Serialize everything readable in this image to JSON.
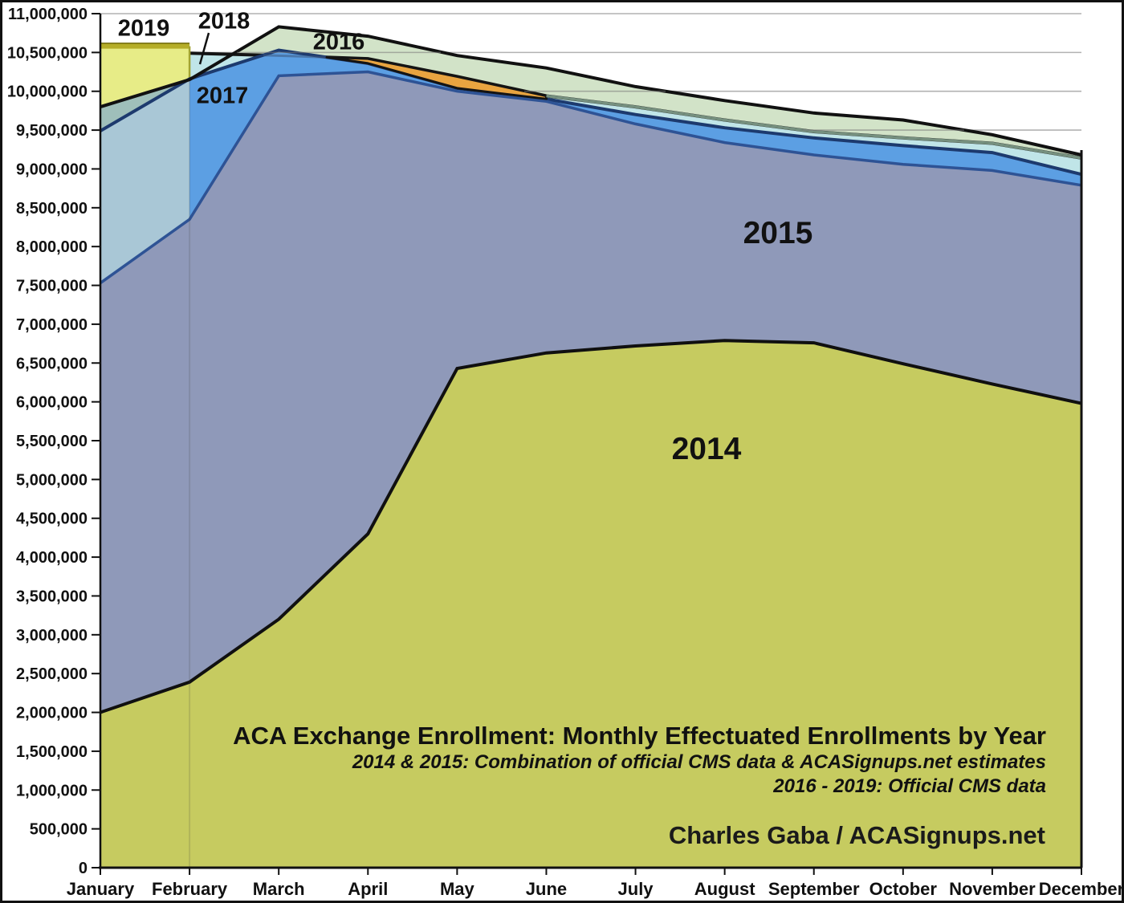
{
  "title": {
    "main": "ACA Exchange Enrollment: Monthly Effectuated Enrollments by Year",
    "sub1": "2014 & 2015: Combination of official CMS data & ACASignups.net estimates",
    "sub2": "2016 - 2019: Official CMS data"
  },
  "credit": "Charles Gaba / ACASignups.net",
  "chart_data": {
    "type": "area",
    "overlapping": true,
    "grid": "horizontal",
    "x_categories": [
      "January",
      "February",
      "March",
      "April",
      "May",
      "June",
      "July",
      "August",
      "September",
      "October",
      "November",
      "December"
    ],
    "y_axis": {
      "min": 0,
      "max": 11000000,
      "step": 500000,
      "tick_labels": [
        "0",
        "500,000",
        "1,000,000",
        "1,500,000",
        "2,000,000",
        "2,500,000",
        "3,000,000",
        "3,500,000",
        "4,000,000",
        "4,500,000",
        "5,000,000",
        "5,500,000",
        "6,000,000",
        "6,500,000",
        "7,000,000",
        "7,500,000",
        "8,000,000",
        "8,500,000",
        "9,000,000",
        "9,500,000",
        "10,000,000",
        "10,500,000",
        "11,000,000"
      ]
    },
    "series": [
      {
        "name": "2014",
        "fill": "#c6cb60",
        "border": "#101010",
        "values": [
          2000000,
          2390000,
          3200000,
          4300000,
          6430000,
          6630000,
          6720000,
          6790000,
          6760000,
          6490000,
          6230000,
          5980000
        ]
      },
      {
        "name": "2015",
        "fill": "#8f99b9",
        "border": "#2e5395",
        "values": [
          7530000,
          8350000,
          10200000,
          10250000,
          10000000,
          9870000,
          9580000,
          9340000,
          9180000,
          9060000,
          8980000,
          8790000
        ]
      },
      {
        "name": "2016",
        "fill": "#d2e3c8",
        "border": "#111111",
        "values": [
          9800000,
          10150000,
          10830000,
          10710000,
          10460000,
          10300000,
          10060000,
          9880000,
          9720000,
          9630000,
          9440000,
          9180000
        ]
      },
      {
        "name": "2017",
        "fill": "#5c9fe3",
        "border": "#1d3a6e",
        "values": [
          9490000,
          10160000,
          10530000,
          10360000,
          10040000,
          9900000,
          9700000,
          9530000,
          9400000,
          9300000,
          9210000,
          8930000
        ]
      },
      {
        "name": "2018",
        "fill": "#c0e5e8",
        "border": "#141414",
        "values": [
          10530000,
          10490000,
          10460000,
          10420000,
          10190000,
          9940000,
          9800000,
          9630000,
          9480000,
          9400000,
          9330000,
          9140000
        ]
      },
      {
        "name": "2019",
        "fill": "#e7ec87",
        "border": "#b5ad28",
        "values": [
          10580000,
          10580000,
          null,
          null,
          null,
          null,
          null,
          null,
          null,
          null,
          null,
          null
        ]
      }
    ],
    "annotations": {
      "orange_band": {
        "color": "#e8a440",
        "between": [
          "2017",
          "2018"
        ],
        "months": [
          "April",
          "May",
          "June"
        ]
      },
      "pointer_2018": "line from 2018 label into cyan band"
    }
  }
}
